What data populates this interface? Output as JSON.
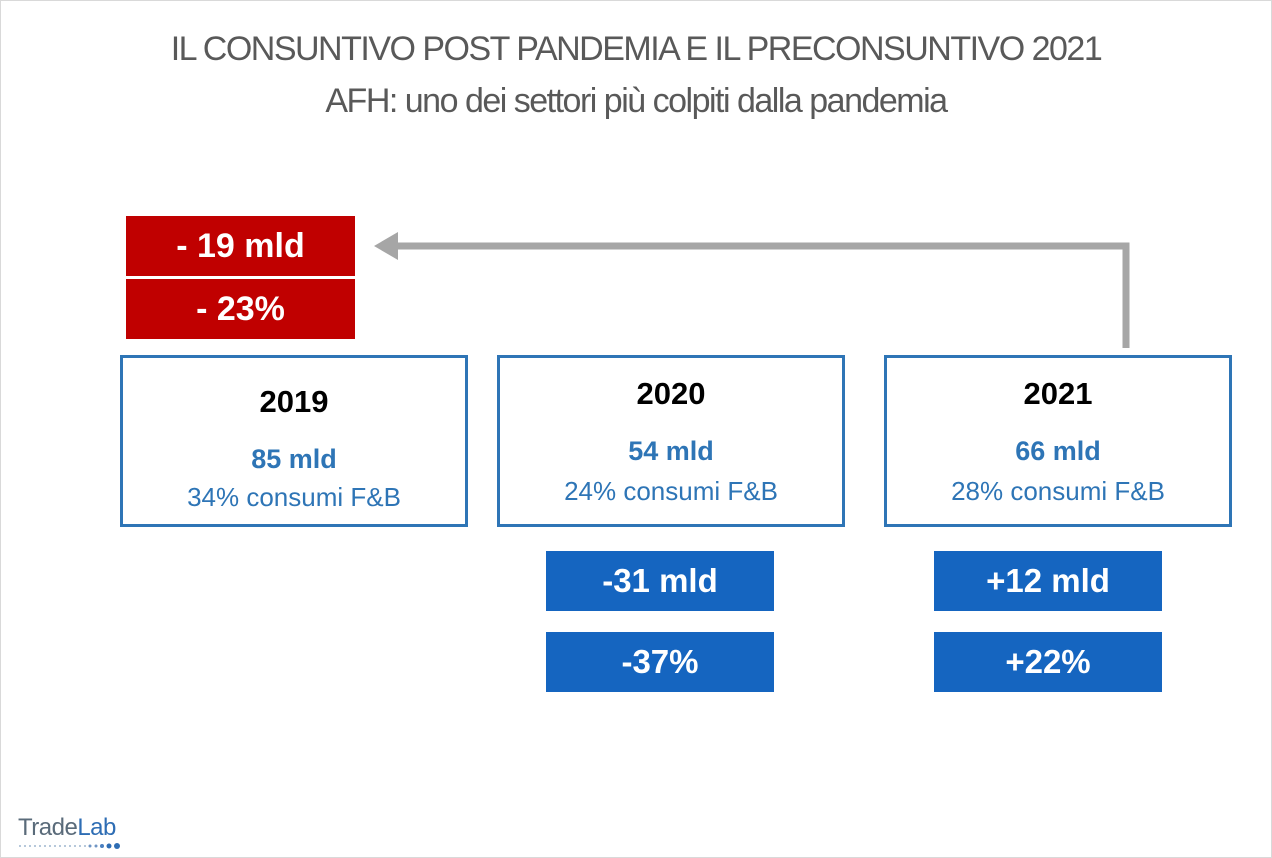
{
  "title": {
    "line1": "IL CONSUNTIVO POST PANDEMIA E IL PRECONSUNTIVO 2021",
    "line2": "AFH: uno dei settori più colpiti dalla pandemia"
  },
  "comparison": {
    "amount": "- 19 mld",
    "percent": "- 23%"
  },
  "years": [
    {
      "year": "2019",
      "amount": "85 mld",
      "share": "34% consumi F&B"
    },
    {
      "year": "2020",
      "amount": "54 mld",
      "share": "24% consumi F&B"
    },
    {
      "year": "2021",
      "amount": "66 mld",
      "share": "28% consumi F&B"
    }
  ],
  "changes": {
    "y2020": {
      "amount": "-31 mld",
      "percent": "-37%"
    },
    "y2021": {
      "amount": "+12 mld",
      "percent": "+22%"
    }
  },
  "logo": {
    "trade": "Trade",
    "lab": "Lab"
  },
  "colors": {
    "negative": "#c00000",
    "accent_blue": "#2e75b6",
    "change_blue": "#1565c0",
    "arrow_gray": "#a6a6a6",
    "title_gray": "#595959"
  },
  "icons": {
    "connector": "elbow-arrow-left-icon"
  }
}
